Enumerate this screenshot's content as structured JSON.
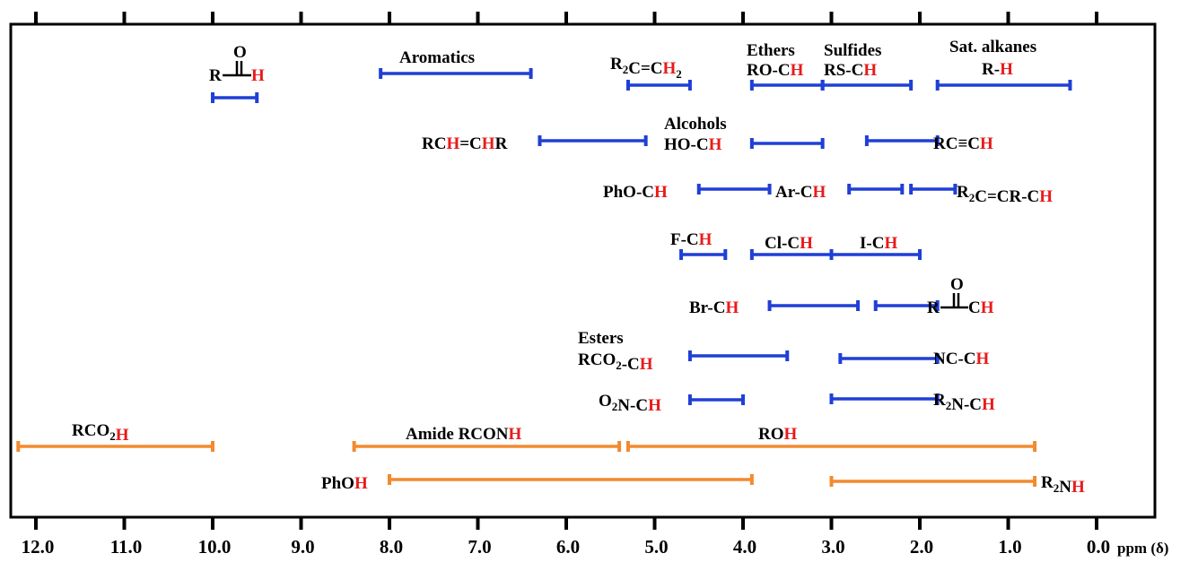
{
  "chart_data": {
    "type": "range",
    "x_axis": {
      "label": "ppm (δ)",
      "range": [
        12.2,
        0
      ],
      "reversed": true,
      "ticks": [
        12.0,
        11.0,
        10.0,
        9.0,
        8.0,
        7.0,
        6.0,
        5.0,
        4.0,
        3.0,
        2.0,
        1.0,
        0.0
      ],
      "tick_labels": [
        "12.0",
        "11.0",
        "10.0",
        "9.0",
        "8.0",
        "7.0",
        "6.0",
        "5.0",
        "4.0",
        "3.0",
        "2.0",
        "1.0",
        "0.0"
      ]
    },
    "colors": {
      "ch_range": "#1f3fd6",
      "exchangeable_range": "#f28a2e",
      "highlight": "#e81b1b",
      "text": "#000000"
    },
    "ranges": [
      {
        "id": "aldehyde",
        "label": [
          "R",
          "C(=O)",
          "H"
        ],
        "from": 10.0,
        "to": 9.5,
        "type": "ch"
      },
      {
        "id": "aromatics",
        "label": [
          "Aromatics"
        ],
        "from": 8.1,
        "to": 6.4,
        "type": "ch"
      },
      {
        "id": "vinylidene",
        "label": [
          "R",
          "2",
          "C=C",
          "H",
          "2"
        ],
        "from": 5.3,
        "to": 4.6,
        "type": "ch"
      },
      {
        "id": "ethers",
        "label": [
          "Ethers",
          "RO-C",
          "H"
        ],
        "from": 3.9,
        "to": 3.1,
        "type": "ch"
      },
      {
        "id": "sulfides",
        "label": [
          "Sulfides",
          "RS-C",
          "H"
        ],
        "from": 3.1,
        "to": 2.1,
        "type": "ch"
      },
      {
        "id": "alkanes",
        "label": [
          "Sat. alkanes",
          "R-",
          "H"
        ],
        "from": 1.8,
        "to": 0.3,
        "type": "ch"
      },
      {
        "id": "alkene",
        "label": [
          "RC",
          "H",
          "=C",
          "H",
          "R"
        ],
        "from": 6.3,
        "to": 5.1,
        "type": "ch"
      },
      {
        "id": "alcohols",
        "label": [
          "Alcohols",
          "HO-C",
          "H"
        ],
        "from": 3.9,
        "to": 3.1,
        "type": "ch"
      },
      {
        "id": "alkyne",
        "label": [
          "RC≡C",
          "H"
        ],
        "from": 2.6,
        "to": 1.8,
        "type": "ch"
      },
      {
        "id": "phenol-ether",
        "label": [
          "PhO-C",
          "H"
        ],
        "from": 4.5,
        "to": 3.7,
        "type": "ch"
      },
      {
        "id": "benzylic",
        "label": [
          "Ar-C",
          "H"
        ],
        "from": 2.8,
        "to": 2.2,
        "type": "ch"
      },
      {
        "id": "allylic",
        "label": [
          "R",
          "2",
          "C=CR-C",
          "H"
        ],
        "from": 2.1,
        "to": 1.6,
        "type": "ch"
      },
      {
        "id": "fluoro",
        "label": [
          "F-C",
          "H"
        ],
        "from": 4.7,
        "to": 4.2,
        "type": "ch"
      },
      {
        "id": "chloro",
        "label": [
          "Cl-C",
          "H"
        ],
        "from": 3.9,
        "to": 3.0,
        "type": "ch"
      },
      {
        "id": "iodo",
        "label": [
          "I-C",
          "H"
        ],
        "from": 3.0,
        "to": 2.0,
        "type": "ch"
      },
      {
        "id": "bromo",
        "label": [
          "Br-C",
          "H"
        ],
        "from": 3.7,
        "to": 2.7,
        "type": "ch"
      },
      {
        "id": "ketone",
        "label": [
          "R",
          "C(=O)",
          "C",
          "H"
        ],
        "from": 2.5,
        "to": 1.8,
        "type": "ch"
      },
      {
        "id": "esters",
        "label": [
          "Esters",
          "RCO",
          "2",
          "-C",
          "H"
        ],
        "from": 4.6,
        "to": 3.5,
        "type": "ch"
      },
      {
        "id": "nitrile",
        "label": [
          "NC-C",
          "H"
        ],
        "from": 2.9,
        "to": 1.8,
        "type": "ch"
      },
      {
        "id": "nitro",
        "label": [
          "O",
          "2",
          "N-C",
          "H"
        ],
        "from": 4.6,
        "to": 4.0,
        "type": "ch"
      },
      {
        "id": "amine",
        "label": [
          "R",
          "2",
          "N-C",
          "H"
        ],
        "from": 3.0,
        "to": 1.8,
        "type": "ch"
      },
      {
        "id": "acid",
        "label": [
          "RCO",
          "2",
          "H"
        ],
        "from": 12.2,
        "to": 10.0,
        "type": "exchangeable"
      },
      {
        "id": "amide",
        "label": [
          "Amide RCON",
          "H"
        ],
        "from": 8.4,
        "to": 5.4,
        "type": "exchangeable"
      },
      {
        "id": "alcohol-oh",
        "label": [
          "RO",
          "H"
        ],
        "from": 5.3,
        "to": 0.7,
        "type": "exchangeable"
      },
      {
        "id": "phenol-oh",
        "label": [
          "PhO",
          "H"
        ],
        "from": 8.0,
        "to": 3.9,
        "type": "exchangeable"
      },
      {
        "id": "amine-nh",
        "label": [
          "R",
          "2",
          "N",
          "H"
        ],
        "from": 3.0,
        "to": 0.7,
        "type": "exchangeable"
      }
    ]
  }
}
